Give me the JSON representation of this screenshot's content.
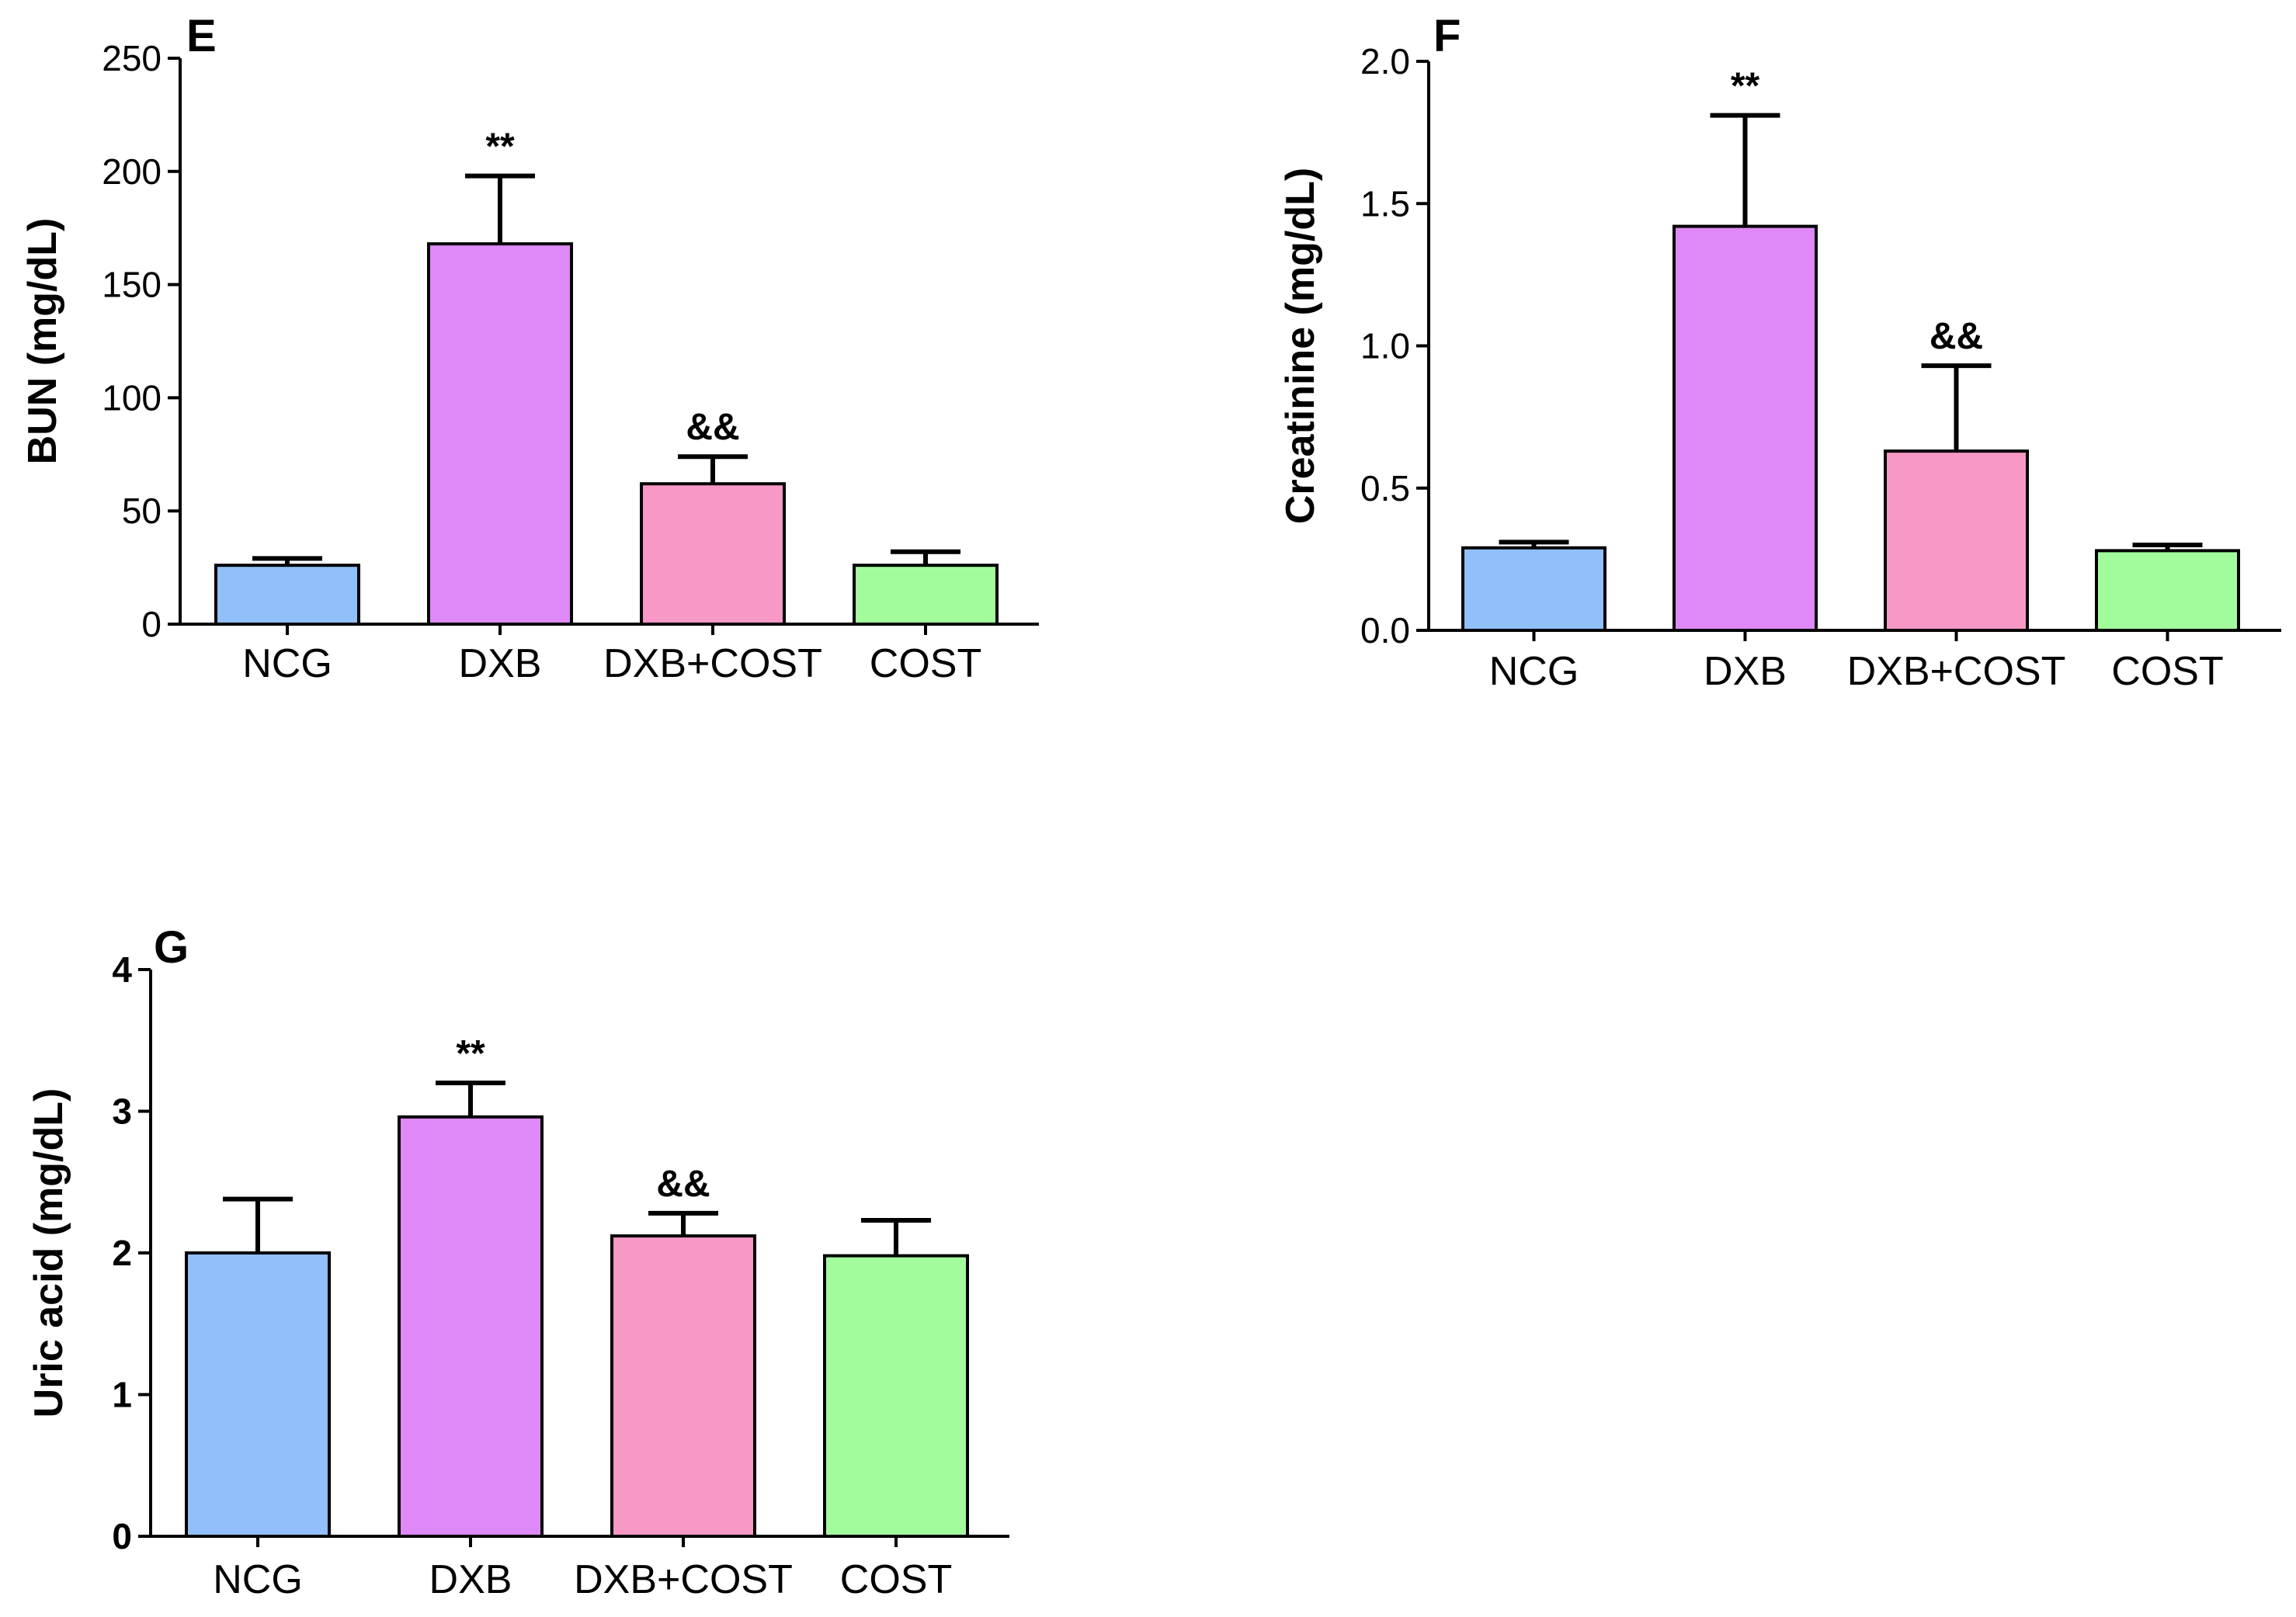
{
  "chart_data": [
    {
      "type": "bar",
      "panel": "E",
      "title": "",
      "xlabel": "",
      "ylabel": "BUN (mg/dL)",
      "ylim": [
        0,
        250
      ],
      "yticks": [
        0,
        50,
        100,
        150,
        200,
        250
      ],
      "ytick_labels": [
        "0",
        "50",
        "100",
        "150",
        "200",
        "250"
      ],
      "categories": [
        "NCG",
        "DXB",
        "DXB+COST",
        "COST"
      ],
      "values": [
        26,
        168,
        62,
        26
      ],
      "errors": [
        3,
        30,
        12,
        6
      ],
      "annotations": [
        "",
        "**",
        "&&",
        ""
      ],
      "colors": [
        "#91bffa",
        "#de89f7",
        "#f798c6",
        "#a2fc9c"
      ]
    },
    {
      "type": "bar",
      "panel": "F",
      "title": "",
      "xlabel": "",
      "ylabel": "Creatinine  (mg/dL)",
      "ylim": [
        0,
        2.0
      ],
      "yticks": [
        0,
        0.5,
        1.0,
        1.5,
        2.0
      ],
      "ytick_labels": [
        "0.0",
        "0.5",
        "1.0",
        "1.5",
        "2.0"
      ],
      "categories": [
        "NCG",
        "DXB",
        "DXB+COST",
        "COST"
      ],
      "values": [
        0.29,
        1.42,
        0.63,
        0.28
      ],
      "errors": [
        0.02,
        0.39,
        0.3,
        0.02
      ],
      "annotations": [
        "",
        "**",
        "&&",
        ""
      ],
      "colors": [
        "#91bffa",
        "#de89f7",
        "#f798c6",
        "#a2fc9c"
      ]
    },
    {
      "type": "bar",
      "panel": "G",
      "title": "",
      "xlabel": "",
      "ylabel": "Uric acid (mg/dL)",
      "ylim": [
        0,
        4
      ],
      "yticks": [
        0,
        1,
        2,
        3,
        4
      ],
      "ytick_labels": [
        "0",
        "1",
        "2",
        "3",
        "4"
      ],
      "categories": [
        "NCG",
        "DXB",
        "DXB+COST",
        "COST"
      ],
      "values": [
        2.0,
        2.96,
        2.12,
        1.98
      ],
      "errors": [
        0.38,
        0.24,
        0.16,
        0.25
      ],
      "annotations": [
        "",
        "**",
        "&&",
        ""
      ],
      "colors": [
        "#91bffa",
        "#de89f7",
        "#f798c6",
        "#a2fc9c"
      ]
    }
  ]
}
